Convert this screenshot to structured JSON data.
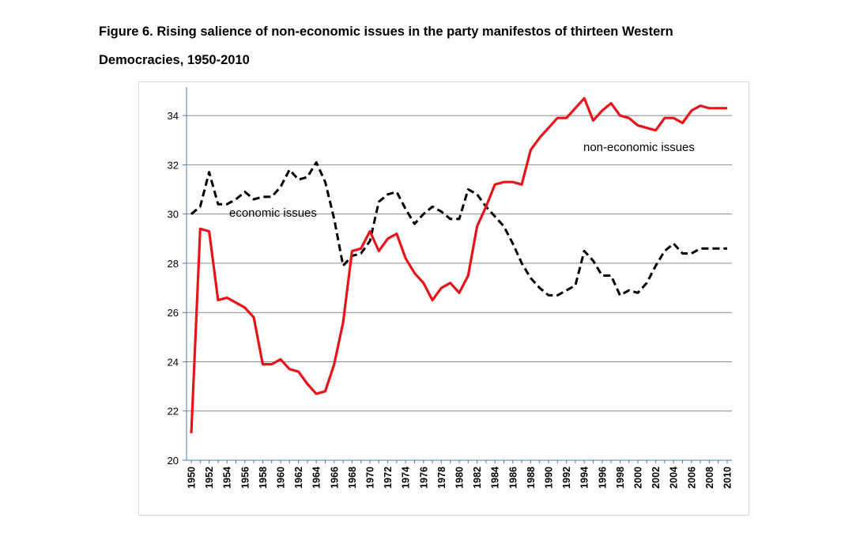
{
  "figure": {
    "title_line1": "Figure 6. Rising salience of non-economic issues in the party manifestos of thirteen Western",
    "title_line2": "Democracies, 1950-2010"
  },
  "chart_data": {
    "type": "line",
    "title": "Figure 6. Rising salience of non-economic issues in the party manifestos of thirteen Western Democracies, 1950-2010",
    "xlabel": "",
    "ylabel": "",
    "ylim": [
      20,
      35
    ],
    "yticks": [
      20,
      22,
      24,
      26,
      28,
      30,
      32,
      34
    ],
    "xlim": [
      1950,
      2010
    ],
    "xticks": [
      1950,
      1952,
      1954,
      1956,
      1958,
      1960,
      1962,
      1964,
      1966,
      1968,
      1970,
      1972,
      1974,
      1976,
      1978,
      1980,
      1982,
      1984,
      1986,
      1988,
      1990,
      1992,
      1994,
      1996,
      1998,
      2000,
      2002,
      2004,
      2006,
      2008,
      2010
    ],
    "grid": true,
    "legend": "none",
    "annotations": [
      {
        "text": "economic issues",
        "series": "economic issues"
      },
      {
        "text": "non-economic issues",
        "series": "non-economic issues"
      }
    ],
    "x": [
      1950,
      1951,
      1952,
      1953,
      1954,
      1955,
      1956,
      1957,
      1958,
      1959,
      1960,
      1961,
      1962,
      1963,
      1964,
      1965,
      1966,
      1967,
      1968,
      1969,
      1970,
      1971,
      1972,
      1973,
      1974,
      1975,
      1976,
      1977,
      1978,
      1979,
      1980,
      1981,
      1982,
      1983,
      1984,
      1985,
      1986,
      1987,
      1988,
      1989,
      1990,
      1991,
      1992,
      1993,
      1994,
      1995,
      1996,
      1997,
      1998,
      1999,
      2000,
      2001,
      2002,
      2003,
      2004,
      2005,
      2006,
      2007,
      2008,
      2009,
      2010
    ],
    "series": [
      {
        "name": "economic issues",
        "color": "#000000",
        "style": "dashed",
        "values": [
          30.0,
          30.3,
          31.7,
          30.4,
          30.4,
          30.6,
          30.9,
          30.6,
          30.7,
          30.7,
          31.1,
          31.8,
          31.4,
          31.5,
          32.1,
          31.3,
          29.8,
          27.9,
          28.3,
          28.4,
          28.9,
          30.5,
          30.8,
          30.9,
          30.2,
          29.6,
          30.0,
          30.3,
          30.1,
          29.8,
          29.8,
          31.0,
          30.8,
          30.3,
          29.9,
          29.5,
          28.8,
          28.0,
          27.4,
          27.0,
          26.7,
          26.7,
          26.9,
          27.1,
          28.5,
          28.1,
          27.5,
          27.5,
          26.7,
          26.9,
          26.8,
          27.2,
          27.9,
          28.5,
          28.8,
          28.4,
          28.4,
          28.6,
          28.6,
          28.6,
          28.6
        ]
      },
      {
        "name": "non-economic issues",
        "color": "#e8141b",
        "style": "solid",
        "values": [
          21.1,
          29.4,
          29.3,
          26.5,
          26.6,
          26.4,
          26.2,
          25.8,
          23.9,
          23.9,
          24.1,
          23.7,
          23.6,
          23.1,
          22.7,
          22.8,
          23.9,
          25.6,
          28.5,
          28.6,
          29.3,
          28.5,
          29.0,
          29.2,
          28.2,
          27.6,
          27.2,
          26.5,
          27.0,
          27.2,
          26.8,
          27.5,
          29.5,
          30.3,
          31.2,
          31.3,
          31.3,
          31.2,
          32.6,
          33.1,
          33.5,
          33.9,
          33.9,
          34.3,
          34.7,
          33.8,
          34.2,
          34.5,
          34.0,
          33.9,
          33.6,
          33.5,
          33.4,
          33.9,
          33.9,
          33.7,
          34.2,
          34.4,
          34.3,
          34.3,
          34.3
        ]
      }
    ]
  }
}
